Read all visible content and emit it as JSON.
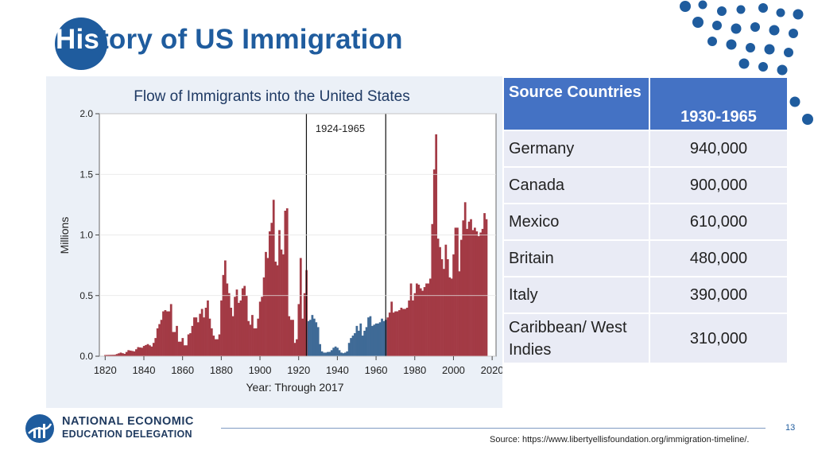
{
  "slide": {
    "title_part1": "His",
    "title_part2": "tory of US Immigration",
    "page_number": "13",
    "source": "Source: https://www.libertyellisfoundation.org/immigration-timeline/."
  },
  "logo": {
    "line1": "NATIONAL ECONOMIC",
    "line2": "EDUCATION DELEGATION"
  },
  "table": {
    "headers": [
      "Source Countries",
      "1930-1965"
    ],
    "rows": [
      [
        "Germany",
        "940,000"
      ],
      [
        "Canada",
        "900,000"
      ],
      [
        "Mexico",
        "610,000"
      ],
      [
        "Britain",
        "480,000"
      ],
      [
        "Italy",
        "390,000"
      ],
      [
        "Caribbean/ West Indies",
        "310,000"
      ]
    ]
  },
  "colors": {
    "accent": "#1f5c9e",
    "bar_main": "#a33a45",
    "bar_period": "#3f6a96",
    "table_header": "#4472c4",
    "table_cell": "#e9ebf5"
  },
  "chart_data": {
    "type": "bar",
    "title": "Flow of Immigrants into the United States",
    "xlabel": "Year: Through 2017",
    "ylabel": "Millions",
    "xlim": [
      1817,
      2022
    ],
    "ylim": [
      0,
      2.0
    ],
    "x_ticks": [
      1820,
      1840,
      1860,
      1880,
      1900,
      1920,
      1940,
      1960,
      1980,
      2000,
      2020
    ],
    "y_ticks": [
      "0.0",
      "0.5",
      "1.0",
      "1.5",
      "2.0"
    ],
    "annotation": "1924-1965",
    "highlight_range": [
      1924,
      1965
    ],
    "anchors": [
      [
        1820,
        0.01
      ],
      [
        1825,
        0.012
      ],
      [
        1828,
        0.03
      ],
      [
        1830,
        0.02
      ],
      [
        1832,
        0.05
      ],
      [
        1835,
        0.04
      ],
      [
        1837,
        0.075
      ],
      [
        1839,
        0.07
      ],
      [
        1840,
        0.085
      ],
      [
        1842,
        0.1
      ],
      [
        1844,
        0.08
      ],
      [
        1845,
        0.11
      ],
      [
        1846,
        0.15
      ],
      [
        1847,
        0.23
      ],
      [
        1849,
        0.3
      ],
      [
        1850,
        0.37
      ],
      [
        1851,
        0.38
      ],
      [
        1852,
        0.37
      ],
      [
        1853,
        0.37
      ],
      [
        1854,
        0.43
      ],
      [
        1855,
        0.2
      ],
      [
        1856,
        0.2
      ],
      [
        1857,
        0.25
      ],
      [
        1858,
        0.12
      ],
      [
        1859,
        0.12
      ],
      [
        1860,
        0.15
      ],
      [
        1861,
        0.09
      ],
      [
        1862,
        0.09
      ],
      [
        1863,
        0.18
      ],
      [
        1864,
        0.19
      ],
      [
        1865,
        0.25
      ],
      [
        1866,
        0.32
      ],
      [
        1867,
        0.32
      ],
      [
        1868,
        0.28
      ],
      [
        1869,
        0.35
      ],
      [
        1870,
        0.39
      ],
      [
        1871,
        0.32
      ],
      [
        1872,
        0.4
      ],
      [
        1873,
        0.46
      ],
      [
        1874,
        0.31
      ],
      [
        1875,
        0.23
      ],
      [
        1876,
        0.17
      ],
      [
        1877,
        0.14
      ],
      [
        1878,
        0.14
      ],
      [
        1879,
        0.18
      ],
      [
        1880,
        0.46
      ],
      [
        1881,
        0.67
      ],
      [
        1882,
        0.79
      ],
      [
        1883,
        0.6
      ],
      [
        1884,
        0.52
      ],
      [
        1885,
        0.4
      ],
      [
        1886,
        0.33
      ],
      [
        1887,
        0.49
      ],
      [
        1888,
        0.55
      ],
      [
        1889,
        0.44
      ],
      [
        1890,
        0.46
      ],
      [
        1891,
        0.56
      ],
      [
        1892,
        0.58
      ],
      [
        1893,
        0.5
      ],
      [
        1894,
        0.29
      ],
      [
        1895,
        0.26
      ],
      [
        1896,
        0.34
      ],
      [
        1897,
        0.23
      ],
      [
        1898,
        0.23
      ],
      [
        1899,
        0.31
      ],
      [
        1900,
        0.45
      ],
      [
        1901,
        0.49
      ],
      [
        1902,
        0.65
      ],
      [
        1903,
        0.86
      ],
      [
        1904,
        0.81
      ],
      [
        1905,
        1.03
      ],
      [
        1906,
        1.1
      ],
      [
        1907,
        1.29
      ],
      [
        1908,
        0.78
      ],
      [
        1909,
        0.75
      ],
      [
        1910,
        1.04
      ],
      [
        1911,
        0.88
      ],
      [
        1912,
        0.84
      ],
      [
        1913,
        1.2
      ],
      [
        1914,
        1.22
      ],
      [
        1915,
        0.33
      ],
      [
        1916,
        0.3
      ],
      [
        1917,
        0.3
      ],
      [
        1918,
        0.11
      ],
      [
        1919,
        0.14
      ],
      [
        1920,
        0.43
      ],
      [
        1921,
        0.81
      ],
      [
        1922,
        0.31
      ],
      [
        1923,
        0.52
      ],
      [
        1924,
        0.71
      ],
      [
        1925,
        0.29
      ],
      [
        1926,
        0.3
      ],
      [
        1927,
        0.34
      ],
      [
        1928,
        0.31
      ],
      [
        1929,
        0.28
      ],
      [
        1930,
        0.24
      ],
      [
        1931,
        0.1
      ],
      [
        1932,
        0.04
      ],
      [
        1933,
        0.03
      ],
      [
        1934,
        0.03
      ],
      [
        1935,
        0.035
      ],
      [
        1936,
        0.036
      ],
      [
        1937,
        0.05
      ],
      [
        1938,
        0.07
      ],
      [
        1939,
        0.08
      ],
      [
        1940,
        0.07
      ],
      [
        1941,
        0.05
      ],
      [
        1942,
        0.03
      ],
      [
        1943,
        0.025
      ],
      [
        1944,
        0.03
      ],
      [
        1945,
        0.04
      ],
      [
        1946,
        0.11
      ],
      [
        1947,
        0.15
      ],
      [
        1948,
        0.17
      ],
      [
        1949,
        0.19
      ],
      [
        1950,
        0.25
      ],
      [
        1951,
        0.21
      ],
      [
        1952,
        0.27
      ],
      [
        1953,
        0.17
      ],
      [
        1954,
        0.21
      ],
      [
        1955,
        0.24
      ],
      [
        1956,
        0.32
      ],
      [
        1957,
        0.33
      ],
      [
        1958,
        0.25
      ],
      [
        1959,
        0.26
      ],
      [
        1960,
        0.27
      ],
      [
        1961,
        0.27
      ],
      [
        1962,
        0.28
      ],
      [
        1963,
        0.31
      ],
      [
        1964,
        0.29
      ],
      [
        1965,
        0.3
      ],
      [
        1966,
        0.32
      ],
      [
        1967,
        0.36
      ],
      [
        1968,
        0.45
      ],
      [
        1969,
        0.36
      ],
      [
        1970,
        0.37
      ],
      [
        1971,
        0.37
      ],
      [
        1972,
        0.38
      ],
      [
        1973,
        0.4
      ],
      [
        1974,
        0.39
      ],
      [
        1975,
        0.39
      ],
      [
        1976,
        0.4
      ],
      [
        1977,
        0.46
      ],
      [
        1978,
        0.6
      ],
      [
        1979,
        0.46
      ],
      [
        1980,
        0.52
      ],
      [
        1981,
        0.6
      ],
      [
        1982,
        0.59
      ],
      [
        1983,
        0.56
      ],
      [
        1984,
        0.54
      ],
      [
        1985,
        0.57
      ],
      [
        1986,
        0.6
      ],
      [
        1987,
        0.6
      ],
      [
        1988,
        0.64
      ],
      [
        1989,
        1.09
      ],
      [
        1990,
        1.54
      ],
      [
        1991,
        1.83
      ],
      [
        1992,
        0.97
      ],
      [
        1993,
        0.9
      ],
      [
        1994,
        0.8
      ],
      [
        1995,
        0.72
      ],
      [
        1996,
        0.92
      ],
      [
        1997,
        0.8
      ],
      [
        1998,
        0.65
      ],
      [
        1999,
        0.64
      ],
      [
        2000,
        0.84
      ],
      [
        2001,
        1.06
      ],
      [
        2002,
        1.06
      ],
      [
        2003,
        0.7
      ],
      [
        2004,
        0.96
      ],
      [
        2005,
        1.12
      ],
      [
        2006,
        1.27
      ],
      [
        2007,
        1.05
      ],
      [
        2008,
        1.11
      ],
      [
        2009,
        1.13
      ],
      [
        2010,
        1.04
      ],
      [
        2011,
        1.06
      ],
      [
        2012,
        1.03
      ],
      [
        2013,
        0.99
      ],
      [
        2014,
        1.02
      ],
      [
        2015,
        1.05
      ],
      [
        2016,
        1.18
      ],
      [
        2017,
        1.13
      ]
    ]
  }
}
